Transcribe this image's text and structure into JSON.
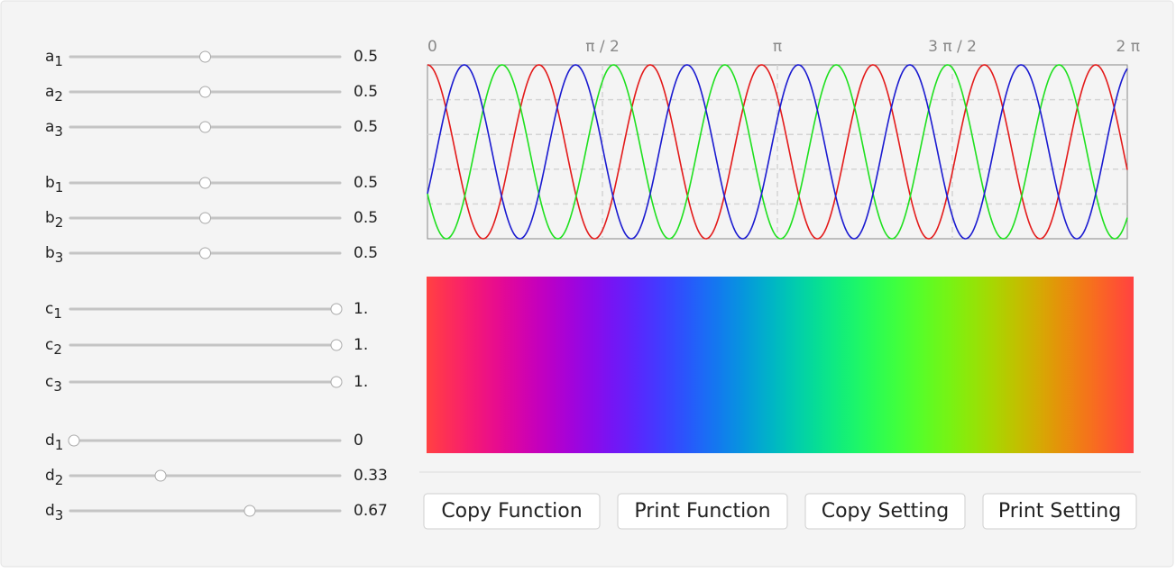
{
  "slider_groups": [
    [
      {
        "name": "a",
        "sub": "1",
        "value": 0.5
      },
      {
        "name": "a",
        "sub": "2",
        "value": 0.5
      },
      {
        "name": "a",
        "sub": "3",
        "value": 0.5
      }
    ],
    [
      {
        "name": "b",
        "sub": "1",
        "value": 0.5
      },
      {
        "name": "b",
        "sub": "2",
        "value": 0.5
      },
      {
        "name": "b",
        "sub": "3",
        "value": 0.5
      }
    ],
    [
      {
        "name": "c",
        "sub": "1",
        "value": 1,
        "label": "1."
      },
      {
        "name": "c",
        "sub": "2",
        "value": 1,
        "label": "1."
      },
      {
        "name": "c",
        "sub": "3",
        "value": 1,
        "label": "1."
      }
    ],
    [
      {
        "name": "d",
        "sub": "1",
        "value": 0
      },
      {
        "name": "d",
        "sub": "2",
        "value": 0.33
      },
      {
        "name": "d",
        "sub": "3",
        "value": 0.67
      }
    ]
  ],
  "slider_range": [
    0,
    1
  ],
  "plot": {
    "xlim": [
      0,
      6.283185
    ],
    "ylim": [
      0,
      1
    ],
    "xticks": [
      {
        "value": 0,
        "label": "0"
      },
      {
        "value": 1.570796,
        "label": "π / 2"
      },
      {
        "value": 3.141593,
        "label": "π"
      },
      {
        "value": 4.712389,
        "label": "3 π / 2"
      },
      {
        "value": 6.283185,
        "label": "2 π"
      }
    ],
    "ygrid": [
      0.2,
      0.4,
      0.6,
      0.8
    ],
    "series_colors": [
      "#e31a1a",
      "#1ee01e",
      "#1a1ad0"
    ]
  },
  "buttons": [
    "Copy Function",
    "Print Function",
    "Copy Setting",
    "Print Setting"
  ]
}
